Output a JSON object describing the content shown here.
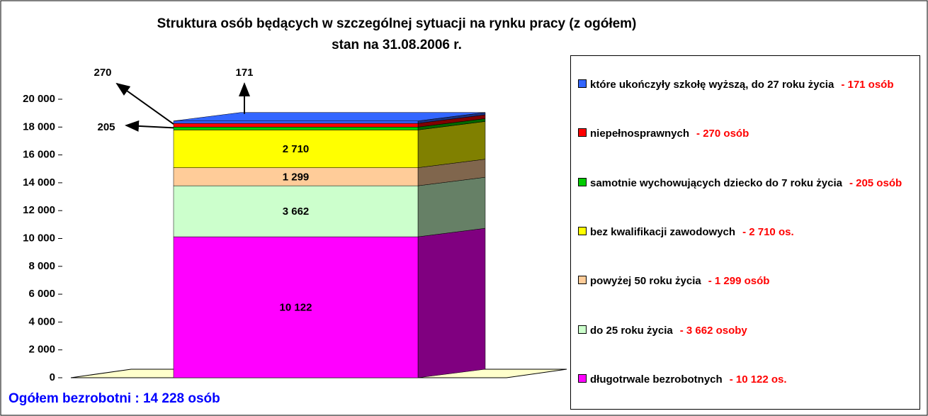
{
  "chart_data": {
    "type": "stacked_bar_3d",
    "title": "Struktura osób będących w szczególnej sytuacji na rynku pracy (z ogółem)",
    "subtitle": "stan na 31.08.2006 r.",
    "annotation": "Ogółem  bezrobotni : 14 228 osób",
    "ylim": [
      0,
      20000
    ],
    "yticks": [
      0,
      {
        "value": 2000,
        "label": "2 000"
      },
      {
        "value": 4000,
        "label": "4 000"
      },
      {
        "value": 6000,
        "label": "6 000"
      },
      {
        "value": 8000,
        "label": "8 000"
      },
      {
        "value": 10000,
        "label": "10 000"
      },
      {
        "value": 12000,
        "label": "12 000"
      },
      {
        "value": 14000,
        "label": "14 000"
      },
      {
        "value": 16000,
        "label": "16 000"
      },
      {
        "value": 18000,
        "label": "18 000"
      },
      {
        "value": 20000,
        "label": "20 000"
      }
    ],
    "grid": false,
    "series": [
      {
        "name": "długotrwale bezrobotnych",
        "color": "#ff00ff",
        "values": [
          10122
        ],
        "value_labels": [
          "10 122"
        ],
        "legend_label": "- 10 122 os."
      },
      {
        "name": "do 25 roku życia",
        "color": "#ccffcc",
        "values": [
          3662
        ],
        "value_labels": [
          "3 662"
        ],
        "legend_label": "- 3 662 osoby"
      },
      {
        "name": "powyżej 50 roku życia",
        "color": "#ffcc99",
        "values": [
          1299
        ],
        "value_labels": [
          "1 299"
        ],
        "legend_label": "- 1 299 osób"
      },
      {
        "name": "bez kwalifikacji zawodowych",
        "color": "#ffff00",
        "values": [
          2710
        ],
        "value_labels": [
          "2 710"
        ],
        "legend_label": "- 2 710 os."
      },
      {
        "name": "samotnie wychowujących dziecko do 7 roku życia",
        "color": "#00cc00",
        "values": [
          205
        ],
        "legend_label": "- 205 osób"
      },
      {
        "name": "niepełnosprawnych",
        "color": "#ff0000",
        "values": [
          270
        ],
        "legend_label": "- 270 osób"
      },
      {
        "name": "które ukończyły szkołę wyższą, do 27 roku życia",
        "color": "#3366ff",
        "values": [
          171
        ],
        "legend_label": "- 171 osób"
      }
    ]
  }
}
